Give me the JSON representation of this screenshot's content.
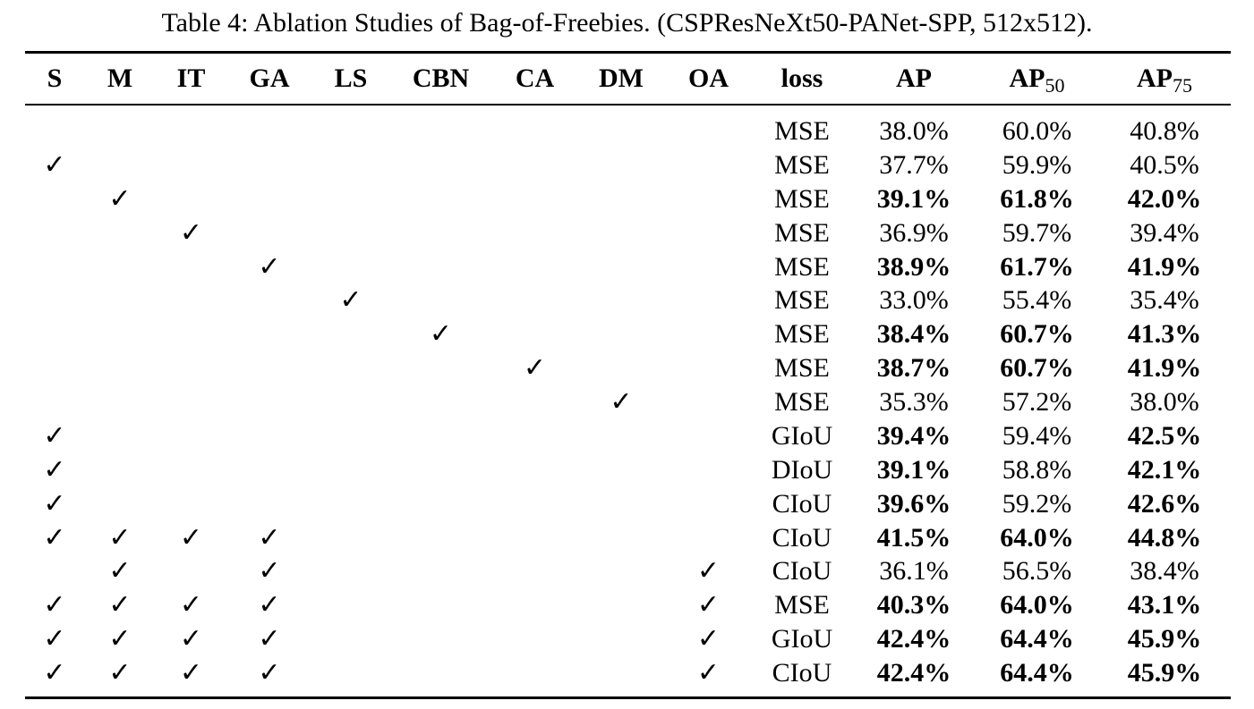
{
  "caption": "Table 4: Ablation Studies of Bag-of-Freebies. (CSPResNeXt50-PANet-SPP, 512x512).",
  "check_mark": "✓",
  "columns": [
    {
      "label": "S"
    },
    {
      "label": "M"
    },
    {
      "label": "IT"
    },
    {
      "label": "GA"
    },
    {
      "label": "LS"
    },
    {
      "label": "CBN"
    },
    {
      "label": "CA"
    },
    {
      "label": "DM"
    },
    {
      "label": "OA"
    },
    {
      "label": "loss"
    },
    {
      "label": "AP"
    },
    {
      "label": "AP",
      "sub": "50"
    },
    {
      "label": "AP",
      "sub": "75"
    }
  ],
  "rows": [
    {
      "checks": [],
      "loss": "MSE",
      "ap": "38.0%",
      "ap50": "60.0%",
      "ap75": "40.8%",
      "bold": [
        false,
        false,
        false
      ]
    },
    {
      "checks": [
        "S"
      ],
      "loss": "MSE",
      "ap": "37.7%",
      "ap50": "59.9%",
      "ap75": "40.5%",
      "bold": [
        false,
        false,
        false
      ]
    },
    {
      "checks": [
        "M"
      ],
      "loss": "MSE",
      "ap": "39.1%",
      "ap50": "61.8%",
      "ap75": "42.0%",
      "bold": [
        true,
        true,
        true
      ]
    },
    {
      "checks": [
        "IT"
      ],
      "loss": "MSE",
      "ap": "36.9%",
      "ap50": "59.7%",
      "ap75": "39.4%",
      "bold": [
        false,
        false,
        false
      ]
    },
    {
      "checks": [
        "GA"
      ],
      "loss": "MSE",
      "ap": "38.9%",
      "ap50": "61.7%",
      "ap75": "41.9%",
      "bold": [
        true,
        true,
        true
      ]
    },
    {
      "checks": [
        "LS"
      ],
      "loss": "MSE",
      "ap": "33.0%",
      "ap50": "55.4%",
      "ap75": "35.4%",
      "bold": [
        false,
        false,
        false
      ]
    },
    {
      "checks": [
        "CBN"
      ],
      "loss": "MSE",
      "ap": "38.4%",
      "ap50": "60.7%",
      "ap75": "41.3%",
      "bold": [
        true,
        true,
        true
      ]
    },
    {
      "checks": [
        "CA"
      ],
      "loss": "MSE",
      "ap": "38.7%",
      "ap50": "60.7%",
      "ap75": "41.9%",
      "bold": [
        true,
        true,
        true
      ]
    },
    {
      "checks": [
        "DM"
      ],
      "loss": "MSE",
      "ap": "35.3%",
      "ap50": "57.2%",
      "ap75": "38.0%",
      "bold": [
        false,
        false,
        false
      ]
    },
    {
      "checks": [
        "S"
      ],
      "loss": "GIoU",
      "ap": "39.4%",
      "ap50": "59.4%",
      "ap75": "42.5%",
      "bold": [
        true,
        false,
        true
      ]
    },
    {
      "checks": [
        "S"
      ],
      "loss": "DIoU",
      "ap": "39.1%",
      "ap50": "58.8%",
      "ap75": "42.1%",
      "bold": [
        true,
        false,
        true
      ]
    },
    {
      "checks": [
        "S"
      ],
      "loss": "CIoU",
      "ap": "39.6%",
      "ap50": "59.2%",
      "ap75": "42.6%",
      "bold": [
        true,
        false,
        true
      ]
    },
    {
      "checks": [
        "S",
        "M",
        "IT",
        "GA"
      ],
      "loss": "CIoU",
      "ap": "41.5%",
      "ap50": "64.0%",
      "ap75": "44.8%",
      "bold": [
        true,
        true,
        true
      ]
    },
    {
      "checks": [
        "M",
        "GA",
        "OA"
      ],
      "loss": "CIoU",
      "ap": "36.1%",
      "ap50": "56.5%",
      "ap75": "38.4%",
      "bold": [
        false,
        false,
        false
      ]
    },
    {
      "checks": [
        "S",
        "M",
        "IT",
        "GA",
        "OA"
      ],
      "loss": "MSE",
      "ap": "40.3%",
      "ap50": "64.0%",
      "ap75": "43.1%",
      "bold": [
        true,
        true,
        true
      ]
    },
    {
      "checks": [
        "S",
        "M",
        "IT",
        "GA",
        "OA"
      ],
      "loss": "GIoU",
      "ap": "42.4%",
      "ap50": "64.4%",
      "ap75": "45.9%",
      "bold": [
        true,
        true,
        true
      ]
    },
    {
      "checks": [
        "S",
        "M",
        "IT",
        "GA",
        "OA"
      ],
      "loss": "CIoU",
      "ap": "42.4%",
      "ap50": "64.4%",
      "ap75": "45.9%",
      "bold": [
        true,
        true,
        true
      ]
    }
  ]
}
